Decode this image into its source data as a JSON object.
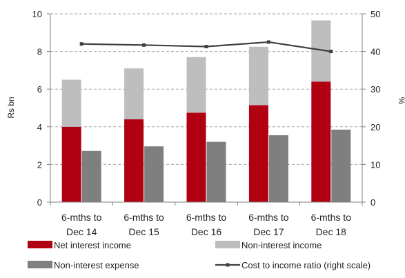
{
  "chart_data": {
    "type": "bar",
    "categories": [
      [
        "6-mths to",
        "Dec 14"
      ],
      [
        "6-mths to",
        "Dec 15"
      ],
      [
        "6-mths to",
        "Dec 16"
      ],
      [
        "6-mths to",
        "Dec 17"
      ],
      [
        "6-mths to",
        "Dec 18"
      ]
    ],
    "ylabel": "Rs bn",
    "y2label": "%",
    "ylim": [
      0,
      10
    ],
    "y2lim": [
      0,
      50
    ],
    "yticks": [
      0,
      2,
      4,
      6,
      8,
      10
    ],
    "y2ticks": [
      0,
      10,
      20,
      30,
      40,
      50
    ],
    "grid": "horizontal dashed",
    "legend_position": "bottom",
    "series": [
      {
        "name": "Net interest income",
        "kind": "stacked-bar-bottom",
        "color": "#b00012",
        "values": [
          4.0,
          4.4,
          4.75,
          5.15,
          6.4
        ]
      },
      {
        "name": "Non-interest income",
        "kind": "stacked-bar-top",
        "color": "#bebebe",
        "values": [
          2.5,
          2.7,
          2.95,
          3.1,
          3.25
        ]
      },
      {
        "name": "Non-interest expense",
        "kind": "bar",
        "color": "#7f7f7f",
        "values": [
          2.72,
          2.96,
          3.2,
          3.55,
          3.85
        ]
      },
      {
        "name": "Cost to income ratio (right scale)",
        "kind": "line-right-axis",
        "color": "#404040",
        "values": [
          42.0,
          41.7,
          41.3,
          42.5,
          40.0
        ]
      }
    ]
  }
}
